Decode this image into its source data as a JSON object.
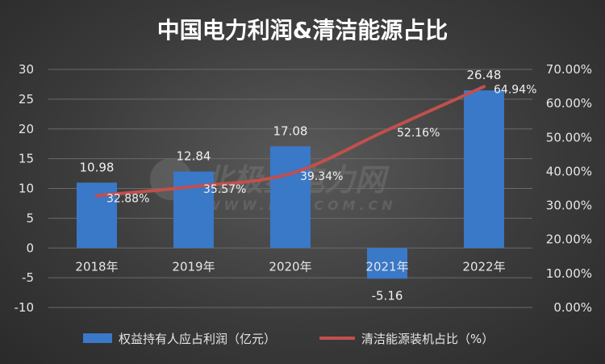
{
  "title": "中国电力利润&清洁能源占比",
  "watermark": {
    "main": "北极星电力网",
    "sub": "WWW.BJX.COM.CN"
  },
  "chart_data": {
    "type": "bar",
    "categories": [
      "2018年",
      "2019年",
      "2020年",
      "2021年",
      "2022年"
    ],
    "series": [
      {
        "name": "权益持有人应占利润（亿元）",
        "type": "bar",
        "axis": "left",
        "values": [
          10.98,
          12.84,
          17.08,
          -5.16,
          26.48
        ],
        "labels": [
          "10.98",
          "12.84",
          "17.08",
          "-5.16",
          "26.48"
        ],
        "color": "#3a78c8"
      },
      {
        "name": "清洁能源装机占比（%）",
        "type": "line",
        "axis": "right",
        "values": [
          32.88,
          35.57,
          39.34,
          52.16,
          64.94
        ],
        "labels": [
          "32.88%",
          "35.57%",
          "39.34%",
          "52.16%",
          "64.94%"
        ],
        "color": "#c0504d"
      }
    ],
    "y_left": {
      "min": -10,
      "max": 30,
      "ticks": [
        "-10",
        "-5",
        "0",
        "5",
        "10",
        "15",
        "20",
        "25",
        "30"
      ]
    },
    "y_right": {
      "min": 0,
      "max": 70,
      "ticks": [
        "0.00%",
        "10.00%",
        "20.00%",
        "30.00%",
        "40.00%",
        "50.00%",
        "60.00%",
        "70.00%"
      ]
    },
    "grid": true,
    "legend": "bottom"
  }
}
